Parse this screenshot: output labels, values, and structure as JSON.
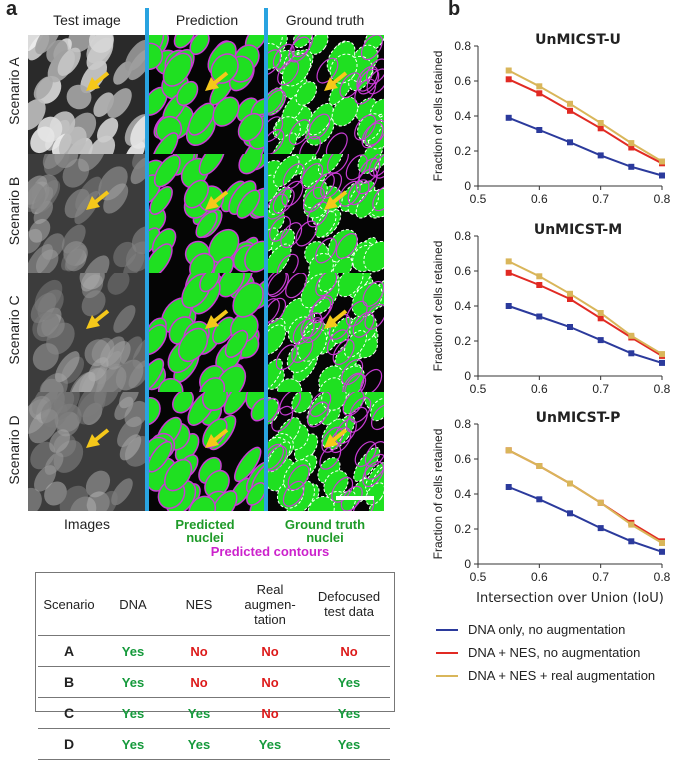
{
  "panel_a": {
    "letter": "a",
    "columns": [
      "Test image",
      "Prediction",
      "Ground truth"
    ],
    "rows": [
      "Scenario A",
      "Scenario B",
      "Scenario C",
      "Scenario D"
    ],
    "under_labels": {
      "images": "Images",
      "predicted": "Predicted nuclei",
      "ground_truth": "Ground truth nuclei",
      "contours": "Predicted contours"
    },
    "colors": {
      "nuclei": "#1fe021",
      "contours": "#c83cd4",
      "divider": "#29a3e0",
      "arrow": "#f5c81a",
      "gt_contour": "#ffffff"
    }
  },
  "table": {
    "headers": [
      "Scenario",
      "DNA",
      "NES",
      "Real augmentation",
      "Defocused test data"
    ],
    "header_lines": [
      [
        "Scenario"
      ],
      [
        "DNA"
      ],
      [
        "NES"
      ],
      [
        "Real",
        "augmen-",
        "tation"
      ],
      [
        "Defocused",
        "test data"
      ]
    ],
    "rows": [
      {
        "scenario": "A",
        "dna": "Yes",
        "nes": "No",
        "real": "No",
        "defocused": "No"
      },
      {
        "scenario": "B",
        "dna": "Yes",
        "nes": "No",
        "real": "No",
        "defocused": "Yes"
      },
      {
        "scenario": "C",
        "dna": "Yes",
        "nes": "Yes",
        "real": "No",
        "defocused": "Yes"
      },
      {
        "scenario": "D",
        "dna": "Yes",
        "nes": "Yes",
        "real": "Yes",
        "defocused": "Yes"
      }
    ]
  },
  "panel_b": {
    "letter": "b"
  },
  "legend": [
    {
      "name": "DNA only, no augmentation",
      "color": "#2b3a9c"
    },
    {
      "name": "DNA + NES, no augmentation",
      "color": "#e12a23"
    },
    {
      "name": "DNA + NES + real augmentation",
      "color": "#d9b65a"
    }
  ],
  "chart_data": [
    {
      "type": "line",
      "title": "UnMICST-U",
      "xlabel": "",
      "ylabel": "Fraction of cells retained",
      "x": [
        0.55,
        0.6,
        0.65,
        0.7,
        0.75,
        0.8
      ],
      "xlim": [
        0.5,
        0.8
      ],
      "ylim": [
        0,
        0.8
      ],
      "xticks": [
        "0.5",
        "0.6",
        "0.7",
        "0.8"
      ],
      "yticks": [
        "0",
        "0.2",
        "0.4",
        "0.6",
        "0.8"
      ],
      "series": [
        {
          "name": "DNA only, no augmentation",
          "values": [
            0.39,
            0.32,
            0.25,
            0.175,
            0.11,
            0.06
          ]
        },
        {
          "name": "DNA + NES, no augmentation",
          "values": [
            0.61,
            0.53,
            0.43,
            0.33,
            0.22,
            0.13
          ]
        },
        {
          "name": "DNA + NES + real augmentation",
          "values": [
            0.66,
            0.57,
            0.47,
            0.36,
            0.245,
            0.14
          ]
        }
      ]
    },
    {
      "type": "line",
      "title": "UnMICST-M",
      "xlabel": "",
      "ylabel": "Fraction of cells retained",
      "x": [
        0.55,
        0.6,
        0.65,
        0.7,
        0.75,
        0.8
      ],
      "xlim": [
        0.5,
        0.8
      ],
      "ylim": [
        0,
        0.8
      ],
      "xticks": [
        "0.5",
        "0.6",
        "0.7",
        "0.8"
      ],
      "yticks": [
        "0",
        "0.2",
        "0.4",
        "0.6",
        "0.8"
      ],
      "series": [
        {
          "name": "DNA only, no augmentation",
          "values": [
            0.4,
            0.34,
            0.28,
            0.205,
            0.13,
            0.075
          ]
        },
        {
          "name": "DNA + NES, no augmentation",
          "values": [
            0.59,
            0.52,
            0.44,
            0.33,
            0.22,
            0.115
          ]
        },
        {
          "name": "DNA + NES + real augmentation",
          "values": [
            0.655,
            0.57,
            0.47,
            0.36,
            0.23,
            0.125
          ]
        }
      ]
    },
    {
      "type": "line",
      "title": "UnMICST-P",
      "xlabel": "Intersection over Union (IoU)",
      "ylabel": "Fraction of cells retained",
      "x": [
        0.55,
        0.6,
        0.65,
        0.7,
        0.75,
        0.8
      ],
      "xlim": [
        0.5,
        0.8
      ],
      "ylim": [
        0,
        0.8
      ],
      "xticks": [
        "0.5",
        "0.6",
        "0.7",
        "0.8"
      ],
      "yticks": [
        "0",
        "0.2",
        "0.4",
        "0.6",
        "0.8"
      ],
      "series": [
        {
          "name": "DNA only, no augmentation",
          "values": [
            0.44,
            0.37,
            0.29,
            0.205,
            0.13,
            0.07
          ]
        },
        {
          "name": "DNA + NES, no augmentation",
          "values": [
            0.65,
            0.56,
            0.46,
            0.35,
            0.235,
            0.13
          ]
        },
        {
          "name": "DNA + NES + real augmentation",
          "values": [
            0.65,
            0.56,
            0.46,
            0.35,
            0.225,
            0.12
          ]
        }
      ]
    }
  ]
}
